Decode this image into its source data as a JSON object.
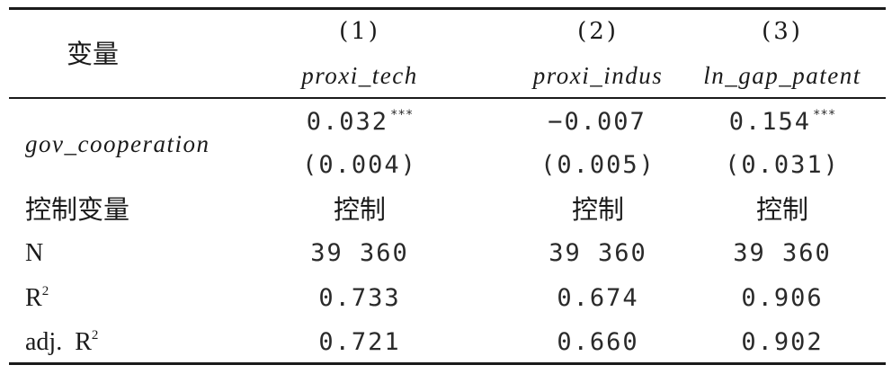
{
  "header": {
    "variable_label": "变量",
    "columns": [
      {
        "number": "(1)",
        "name": "proxi_tech"
      },
      {
        "number": "(2)",
        "name": "proxi_indus"
      },
      {
        "number": "(3)",
        "name": "ln_gap_patent"
      }
    ]
  },
  "rows": {
    "gov": {
      "label": "gov_cooperation",
      "coef": [
        "0.032",
        "−0.007",
        "0.154"
      ],
      "stars": [
        "***",
        "",
        "***"
      ],
      "se": [
        "(0.004)",
        "(0.005)",
        "(0.031)"
      ]
    },
    "controls": {
      "label": "控制变量",
      "values": [
        "控制",
        "控制",
        "控制"
      ]
    },
    "n": {
      "label": "N",
      "values": [
        "39 360",
        "39 360",
        "39 360"
      ]
    },
    "r2": {
      "label": "R",
      "sup": "2",
      "values": [
        "0.733",
        "0.674",
        "0.906"
      ]
    },
    "adj_r2": {
      "label": "adj.  R",
      "sup": "2",
      "values": [
        "0.721",
        "0.660",
        "0.902"
      ]
    }
  }
}
